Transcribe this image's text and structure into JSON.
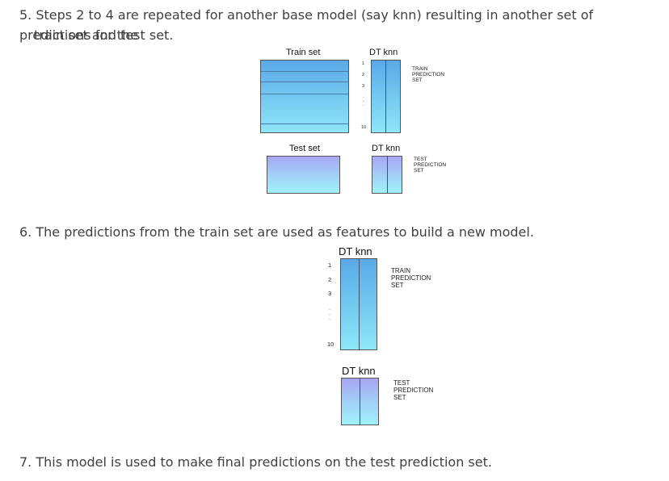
{
  "steps": [
    {
      "number": "5.",
      "text_line1": "Steps 2 to 4 are repeated for another base model (say knn) resulting in another set of predictions for the",
      "text_line2": "train set and test set."
    },
    {
      "number": "6.",
      "text": "The predictions from the train set are used as features to build a new model."
    },
    {
      "number": "7.",
      "text": "This model is used to make final predictions on the test prediction set."
    }
  ],
  "figure1": {
    "train_set_label": "Train set",
    "test_set_label": "Test set",
    "model_cols_label": "DT  knn",
    "model_cols_label_test": "DT  knn",
    "row_labels": [
      "1",
      "2",
      "3",
      "10"
    ],
    "train_prediction_label": "TRAIN\nPREDICTION\nSET",
    "test_prediction_label": "TEST\nPREDICTION\nSET"
  },
  "figure2": {
    "model_cols_label": "DT  knn",
    "model_cols_label_test": "DT  knn",
    "row_labels": [
      "1",
      "2",
      "3",
      "10"
    ],
    "train_prediction_label": "TRAIN\nPREDICTION\nSET",
    "test_prediction_label": "TEST\nPREDICTION\nSET"
  },
  "colors": {
    "train_fill_top": "#5aa8e8",
    "train_fill_bottom": "#8fe6f8",
    "test_fill_top": "#a8a6f4",
    "test_fill_bottom": "#9ff2fb",
    "text": "#404040"
  }
}
